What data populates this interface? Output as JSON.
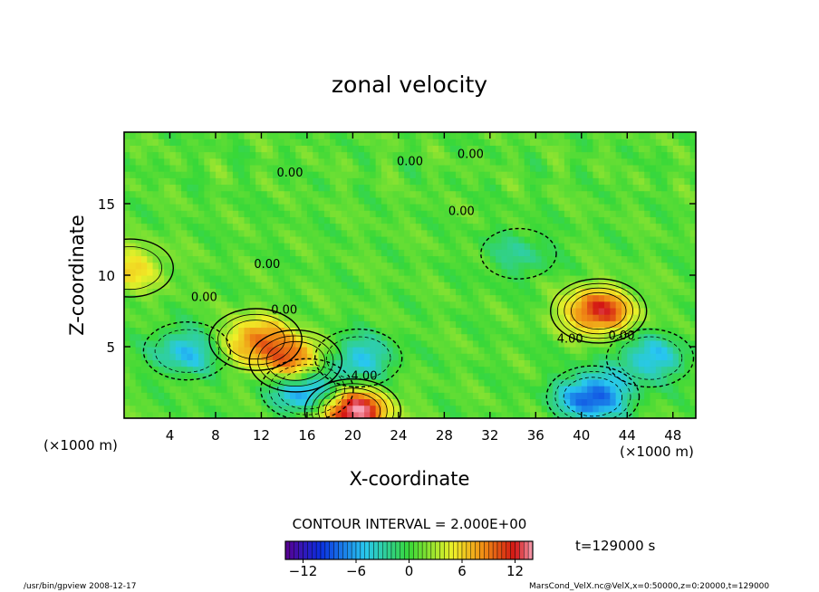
{
  "chart_data": {
    "type": "heatmap",
    "title": "zonal velocity",
    "xlabel": "X-coordinate",
    "ylabel": "Z-coordinate",
    "x_unit": "(×1000 m)",
    "z_unit": "(×1000 m)",
    "xlim": [
      0,
      50
    ],
    "ylim": [
      0,
      20
    ],
    "x_ticks": [
      4,
      8,
      12,
      16,
      20,
      24,
      28,
      32,
      36,
      40,
      44,
      48
    ],
    "y_ticks": [
      5,
      10,
      15
    ],
    "contour_interval_label": "CONTOUR INTERVAL = 2.000E+00",
    "contour_labels": [
      {
        "x": 30.3,
        "z": 18.2,
        "text": "0.00"
      },
      {
        "x": 25.0,
        "z": 17.7,
        "text": "0.00"
      },
      {
        "x": 14.5,
        "z": 16.9,
        "text": "0.00"
      },
      {
        "x": 29.5,
        "z": 14.2,
        "text": "0.00"
      },
      {
        "x": 12.5,
        "z": 10.5,
        "text": "0.00"
      },
      {
        "x": 7.0,
        "z": 8.2,
        "text": "0.00"
      },
      {
        "x": 14.0,
        "z": 7.3,
        "text": "0.00"
      },
      {
        "x": 39.0,
        "z": 5.3,
        "text": "4.00"
      },
      {
        "x": 43.5,
        "z": 5.5,
        "text": "0.00"
      },
      {
        "x": 21.0,
        "z": 2.7,
        "text": "4.00"
      }
    ],
    "features": [
      {
        "x": 20,
        "z": 0.5,
        "value": 14,
        "kind": "max"
      },
      {
        "x": 41.5,
        "z": 7.5,
        "value": 11,
        "kind": "max"
      },
      {
        "x": 15,
        "z": 4.0,
        "value": 9,
        "kind": "max"
      },
      {
        "x": 11.5,
        "z": 5.5,
        "value": 8,
        "kind": "max"
      },
      {
        "x": 0.5,
        "z": 10.5,
        "value": 5,
        "kind": "max"
      },
      {
        "x": 41,
        "z": 1.5,
        "value": -10,
        "kind": "min"
      },
      {
        "x": 16,
        "z": 2.0,
        "value": -9,
        "kind": "min"
      },
      {
        "x": 20.5,
        "z": 4.2,
        "value": -6,
        "kind": "min"
      },
      {
        "x": 5.5,
        "z": 4.7,
        "value": -6,
        "kind": "min"
      },
      {
        "x": 46,
        "z": 4.2,
        "value": -6,
        "kind": "min"
      },
      {
        "x": 34.5,
        "z": 11.5,
        "value": -3,
        "kind": "min"
      }
    ],
    "colorbar": {
      "range": [
        -14,
        14
      ],
      "tick_values": [
        -12,
        -6,
        0,
        6,
        12
      ],
      "tick_labels": [
        "−12",
        "−6",
        "0",
        "6",
        "12"
      ]
    },
    "time_label": "t=129000 s",
    "colors": {
      "min": "#5a0090",
      "blue": "#0a2fe0",
      "cyan": "#28c8f0",
      "green": "#38d838",
      "yellow": "#f0f028",
      "orange": "#f08a14",
      "red": "#d21414",
      "max": "#f8a0b4"
    }
  },
  "footer": {
    "left": "/usr/bin/gpview   2008-12-17",
    "right": "MarsCond_VelX.nc@VelX,x=0:50000,z=0:20000,t=129000"
  }
}
